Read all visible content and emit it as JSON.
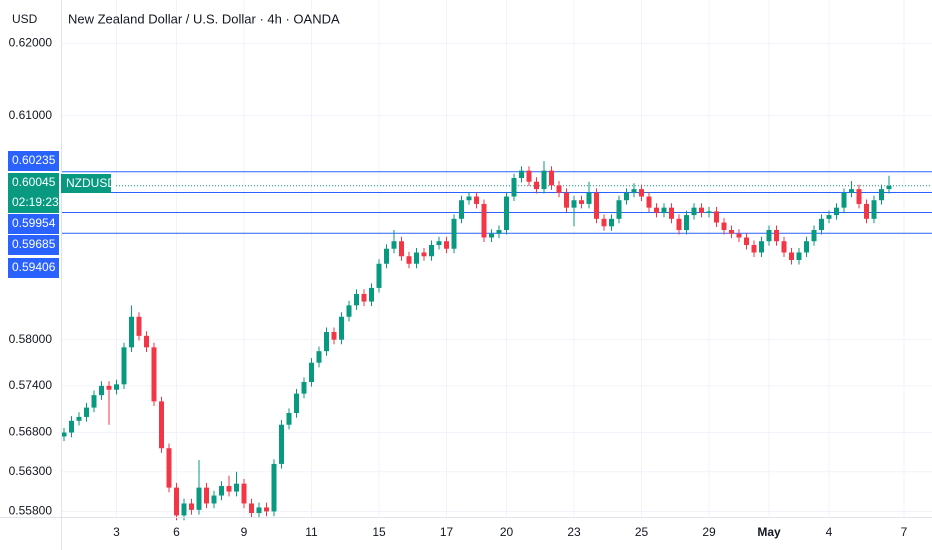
{
  "chart_data": {
    "type": "candlestick",
    "title": "New Zealand Dollar / U.S. Dollar · 4h · OANDA",
    "currency": "USD",
    "log_scale": true,
    "grid": true,
    "up_color": "#089981",
    "down_color": "#f23645",
    "level_color": "#2962ff",
    "ylim": [
      0.5573,
      0.6261
    ],
    "yticks": [
      {
        "value": 0.62,
        "label": "0.62000"
      },
      {
        "value": 0.61,
        "label": "0.61000"
      },
      {
        "value": 0.58,
        "label": "0.58000"
      },
      {
        "value": 0.574,
        "label": "0.57400"
      },
      {
        "value": 0.568,
        "label": "0.56800"
      },
      {
        "value": 0.563,
        "label": "0.56300"
      },
      {
        "value": 0.558,
        "label": "0.55800"
      }
    ],
    "xticks": [
      {
        "value": 7,
        "label": "3"
      },
      {
        "value": 15,
        "label": "6"
      },
      {
        "value": 24,
        "label": "9"
      },
      {
        "value": 33,
        "label": "11"
      },
      {
        "value": 42,
        "label": "15"
      },
      {
        "value": 51,
        "label": "17"
      },
      {
        "value": 59,
        "label": "20"
      },
      {
        "value": 68,
        "label": "23"
      },
      {
        "value": 77,
        "label": "25"
      },
      {
        "value": 86,
        "label": "29"
      },
      {
        "value": 94,
        "label": "May"
      },
      {
        "value": 102,
        "label": "4"
      },
      {
        "value": 112,
        "label": "7"
      }
    ],
    "levels": [
      0.60235,
      0.59954,
      0.59685,
      0.59406
    ],
    "current_price": {
      "value": 0.60045,
      "symbol": "NZDUSD",
      "countdown": "02:19:23"
    },
    "candles": [
      [
        0.5675,
        0.5686,
        0.5669,
        0.568
      ],
      [
        0.568,
        0.5701,
        0.5674,
        0.5695
      ],
      [
        0.5695,
        0.5706,
        0.5689,
        0.57
      ],
      [
        0.57,
        0.5718,
        0.5694,
        0.5712
      ],
      [
        0.5712,
        0.5734,
        0.5706,
        0.5728
      ],
      [
        0.5728,
        0.5746,
        0.5722,
        0.574
      ],
      [
        0.574,
        0.5746,
        0.569,
        0.5735
      ],
      [
        0.5735,
        0.5748,
        0.5729,
        0.5742
      ],
      [
        0.5742,
        0.5796,
        0.5736,
        0.579
      ],
      [
        0.579,
        0.5845,
        0.5784,
        0.583
      ],
      [
        0.583,
        0.5836,
        0.5799,
        0.5805
      ],
      [
        0.5805,
        0.5811,
        0.5784,
        0.579
      ],
      [
        0.579,
        0.5796,
        0.5714,
        0.572
      ],
      [
        0.572,
        0.5726,
        0.5654,
        0.566
      ],
      [
        0.566,
        0.5666,
        0.5604,
        0.561
      ],
      [
        0.561,
        0.5616,
        0.5569,
        0.5575
      ],
      [
        0.5575,
        0.5596,
        0.5569,
        0.559
      ],
      [
        0.559,
        0.5596,
        0.5576,
        0.5582
      ],
      [
        0.5582,
        0.5645,
        0.5576,
        0.561
      ],
      [
        0.561,
        0.5616,
        0.5584,
        0.559
      ],
      [
        0.559,
        0.5606,
        0.5584,
        0.56
      ],
      [
        0.56,
        0.5618,
        0.5594,
        0.5612
      ],
      [
        0.5612,
        0.5625,
        0.5599,
        0.5605
      ],
      [
        0.5605,
        0.563,
        0.5599,
        0.5615
      ],
      [
        0.5615,
        0.5621,
        0.5584,
        0.559
      ],
      [
        0.559,
        0.5596,
        0.5572,
        0.5578
      ],
      [
        0.5578,
        0.5591,
        0.5572,
        0.5585
      ],
      [
        0.5585,
        0.5591,
        0.5574,
        0.558
      ],
      [
        0.558,
        0.5646,
        0.5574,
        0.564
      ],
      [
        0.564,
        0.5696,
        0.5634,
        0.569
      ],
      [
        0.569,
        0.5711,
        0.5684,
        0.5705
      ],
      [
        0.5705,
        0.5736,
        0.5699,
        0.573
      ],
      [
        0.573,
        0.5751,
        0.5724,
        0.5745
      ],
      [
        0.5745,
        0.5776,
        0.5739,
        0.577
      ],
      [
        0.577,
        0.5791,
        0.5764,
        0.5785
      ],
      [
        0.5785,
        0.5816,
        0.5779,
        0.581
      ],
      [
        0.581,
        0.5816,
        0.5794,
        0.58
      ],
      [
        0.58,
        0.5836,
        0.5794,
        0.583
      ],
      [
        0.583,
        0.5851,
        0.5824,
        0.5845
      ],
      [
        0.5845,
        0.5866,
        0.5839,
        0.586
      ],
      [
        0.586,
        0.5866,
        0.5844,
        0.585
      ],
      [
        0.585,
        0.5874,
        0.5844,
        0.5868
      ],
      [
        0.5868,
        0.5906,
        0.5862,
        0.59
      ],
      [
        0.59,
        0.5926,
        0.5894,
        0.592
      ],
      [
        0.592,
        0.5945,
        0.5914,
        0.593
      ],
      [
        0.593,
        0.5936,
        0.5904,
        0.591
      ],
      [
        0.591,
        0.5916,
        0.5894,
        0.59
      ],
      [
        0.59,
        0.5921,
        0.5894,
        0.5915
      ],
      [
        0.5915,
        0.5921,
        0.5904,
        0.591
      ],
      [
        0.591,
        0.5931,
        0.5904,
        0.5925
      ],
      [
        0.5925,
        0.5936,
        0.5919,
        0.593
      ],
      [
        0.593,
        0.5936,
        0.5914,
        0.592
      ],
      [
        0.592,
        0.5966,
        0.5914,
        0.596
      ],
      [
        0.596,
        0.5991,
        0.5954,
        0.5985
      ],
      [
        0.5985,
        0.5996,
        0.5979,
        0.599
      ],
      [
        0.599,
        0.5996,
        0.5974,
        0.598
      ],
      [
        0.598,
        0.5986,
        0.5929,
        0.5935
      ],
      [
        0.5935,
        0.5946,
        0.5929,
        0.594
      ],
      [
        0.594,
        0.5951,
        0.5934,
        0.5945
      ],
      [
        0.5945,
        0.5996,
        0.5939,
        0.599
      ],
      [
        0.599,
        0.6021,
        0.5984,
        0.6015
      ],
      [
        0.6015,
        0.6031,
        0.6009,
        0.6025
      ],
      [
        0.6025,
        0.6031,
        0.6004,
        0.601
      ],
      [
        0.601,
        0.6016,
        0.5994,
        0.6
      ],
      [
        0.6,
        0.6038,
        0.5994,
        0.6025
      ],
      [
        0.6025,
        0.6031,
        0.5999,
        0.6005
      ],
      [
        0.6005,
        0.6011,
        0.5989,
        0.5995
      ],
      [
        0.5995,
        0.6001,
        0.5969,
        0.5975
      ],
      [
        0.5975,
        0.5991,
        0.595,
        0.5985
      ],
      [
        0.5985,
        0.5991,
        0.5974,
        0.598
      ],
      [
        0.598,
        0.601,
        0.5974,
        0.5995
      ],
      [
        0.5995,
        0.6001,
        0.5954,
        0.596
      ],
      [
        0.596,
        0.5966,
        0.5944,
        0.595
      ],
      [
        0.595,
        0.5966,
        0.5944,
        0.596
      ],
      [
        0.596,
        0.5991,
        0.5954,
        0.5985
      ],
      [
        0.5985,
        0.6001,
        0.5979,
        0.5995
      ],
      [
        0.5995,
        0.6008,
        0.5989,
        0.6
      ],
      [
        0.6,
        0.6006,
        0.5984,
        0.599
      ],
      [
        0.599,
        0.5996,
        0.5969,
        0.5975
      ],
      [
        0.5975,
        0.5981,
        0.5962,
        0.5968
      ],
      [
        0.5968,
        0.5981,
        0.5962,
        0.5975
      ],
      [
        0.5975,
        0.5981,
        0.5954,
        0.596
      ],
      [
        0.596,
        0.5966,
        0.5939,
        0.5945
      ],
      [
        0.5945,
        0.5971,
        0.5939,
        0.5965
      ],
      [
        0.5965,
        0.5981,
        0.5959,
        0.5975
      ],
      [
        0.5975,
        0.5981,
        0.5962,
        0.5968
      ],
      [
        0.5968,
        0.5976,
        0.5962,
        0.597
      ],
      [
        0.597,
        0.5976,
        0.5949,
        0.5955
      ],
      [
        0.5955,
        0.5961,
        0.5939,
        0.5945
      ],
      [
        0.5945,
        0.5951,
        0.5934,
        0.594
      ],
      [
        0.594,
        0.5946,
        0.5929,
        0.5935
      ],
      [
        0.5935,
        0.5941,
        0.5919,
        0.5925
      ],
      [
        0.5925,
        0.5931,
        0.5909,
        0.5915
      ],
      [
        0.5915,
        0.5936,
        0.5909,
        0.593
      ],
      [
        0.593,
        0.5951,
        0.5924,
        0.5945
      ],
      [
        0.5945,
        0.5951,
        0.5924,
        0.593
      ],
      [
        0.593,
        0.5936,
        0.5909,
        0.5915
      ],
      [
        0.5915,
        0.5921,
        0.5899,
        0.5905
      ],
      [
        0.5905,
        0.5921,
        0.5899,
        0.5915
      ],
      [
        0.5915,
        0.5936,
        0.5909,
        0.593
      ],
      [
        0.593,
        0.5951,
        0.5924,
        0.5945
      ],
      [
        0.5945,
        0.5966,
        0.5939,
        0.596
      ],
      [
        0.596,
        0.5971,
        0.5954,
        0.5965
      ],
      [
        0.5965,
        0.5981,
        0.5959,
        0.5975
      ],
      [
        0.5975,
        0.6001,
        0.5969,
        0.5995
      ],
      [
        0.5995,
        0.6011,
        0.5989,
        0.6
      ],
      [
        0.6,
        0.6006,
        0.5974,
        0.598
      ],
      [
        0.598,
        0.5986,
        0.5954,
        0.596
      ],
      [
        0.596,
        0.5991,
        0.5954,
        0.5985
      ],
      [
        0.5985,
        0.6006,
        0.5979,
        0.6
      ],
      [
        0.6,
        0.6018,
        0.5994,
        0.60045
      ]
    ]
  }
}
